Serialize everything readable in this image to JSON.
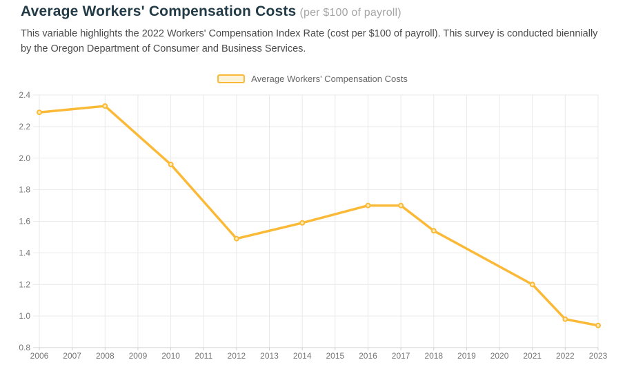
{
  "header": {
    "title": "Average Workers' Compensation Costs",
    "subtitle": "(per $100 of payroll)",
    "description": "This variable highlights the 2022 Workers' Compensation Index Rate (cost per $100 of payroll). This survey is conducted biennially by the Oregon Department of Consumer and Business Services."
  },
  "legend": {
    "label": "Average Workers' Compensation Costs"
  },
  "colors": {
    "line": "#fbb938",
    "marker_fill": "#fdeab6",
    "legend_fill": "#fdf3d9",
    "title_text": "#223b46",
    "subtitle_text": "#a5a5a5",
    "body_text": "#4a4a4a",
    "grid": "#e9e9e9",
    "axis": "#cfcfcf",
    "tick_label": "#757575"
  },
  "chart_data": {
    "type": "line",
    "title": "Average Workers' Compensation Costs (per $100 of payroll)",
    "xlabel": "",
    "ylabel": "",
    "xlim": [
      2006,
      2023
    ],
    "ylim": [
      0.8,
      2.4
    ],
    "x_ticks": [
      2006,
      2007,
      2008,
      2009,
      2010,
      2011,
      2012,
      2013,
      2014,
      2015,
      2016,
      2017,
      2018,
      2019,
      2020,
      2021,
      2022,
      2023
    ],
    "y_ticks": [
      0.8,
      1.0,
      1.2,
      1.4,
      1.6,
      1.8,
      2.0,
      2.2,
      2.4
    ],
    "grid": true,
    "legend_position": "top-center",
    "series": [
      {
        "name": "Average Workers' Compensation Costs",
        "points": [
          {
            "year": 2006,
            "value": 2.29
          },
          {
            "year": 2008,
            "value": 2.33
          },
          {
            "year": 2010,
            "value": 1.96
          },
          {
            "year": 2012,
            "value": 1.49
          },
          {
            "year": 2014,
            "value": 1.59
          },
          {
            "year": 2016,
            "value": 1.7
          },
          {
            "year": 2017,
            "value": 1.7
          },
          {
            "year": 2018,
            "value": 1.54
          },
          {
            "year": 2021,
            "value": 1.2
          },
          {
            "year": 2022,
            "value": 0.98
          },
          {
            "year": 2023,
            "value": 0.94
          }
        ]
      }
    ]
  }
}
